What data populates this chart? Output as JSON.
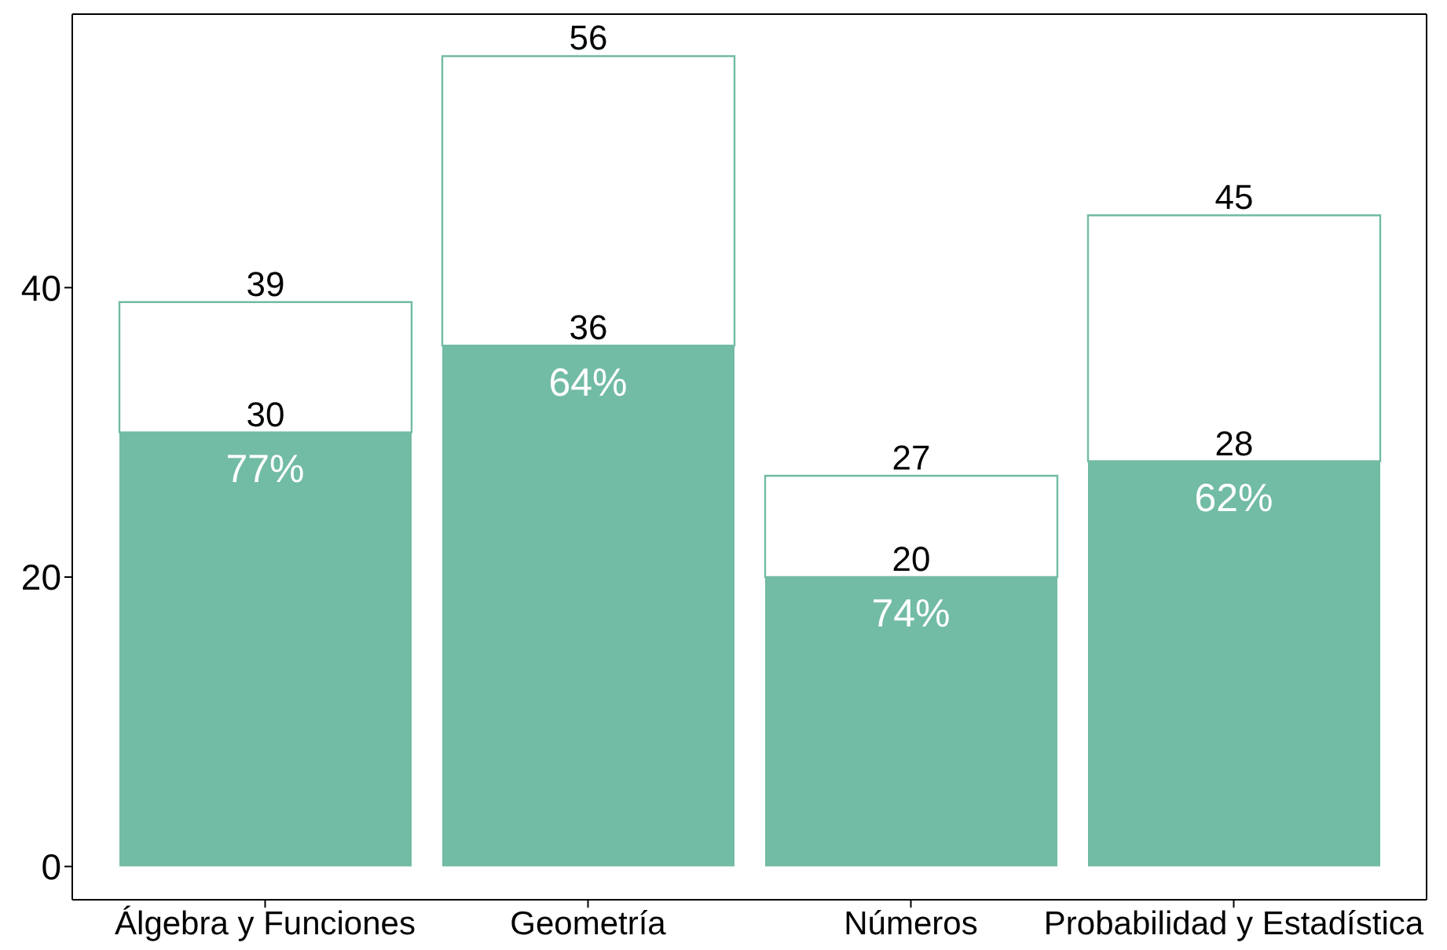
{
  "chart_data": {
    "type": "bar",
    "stacked": true,
    "categories": [
      "Álgebra y Funciones",
      "Geometría",
      "Números",
      "Probabilidad y Estadística"
    ],
    "series": [
      {
        "color": "#72bba5",
        "values": [
          30,
          36,
          20,
          28
        ],
        "value_labels": [
          "30",
          "36",
          "20",
          "28"
        ]
      },
      {
        "color": "#72bba5",
        "values": [
          9,
          20,
          7,
          17
        ]
      }
    ],
    "totals": [
      "39",
      "56",
      "27",
      "45"
    ],
    "ylim": [
      -2.3,
      58.9
    ],
    "yticks": [
      0,
      20,
      40
    ],
    "grid": false,
    "legend": false,
    "annotations": [
      {
        "text": "77%",
        "x": "Álgebra y Funciones",
        "y": 30
      },
      {
        "text": "64%",
        "x": "Geometría",
        "y": 36
      },
      {
        "text": "74%",
        "x": "Números",
        "y": 20
      },
      {
        "text": "62%",
        "x": "Probabilidad y Estadística",
        "y": 28
      }
    ]
  }
}
